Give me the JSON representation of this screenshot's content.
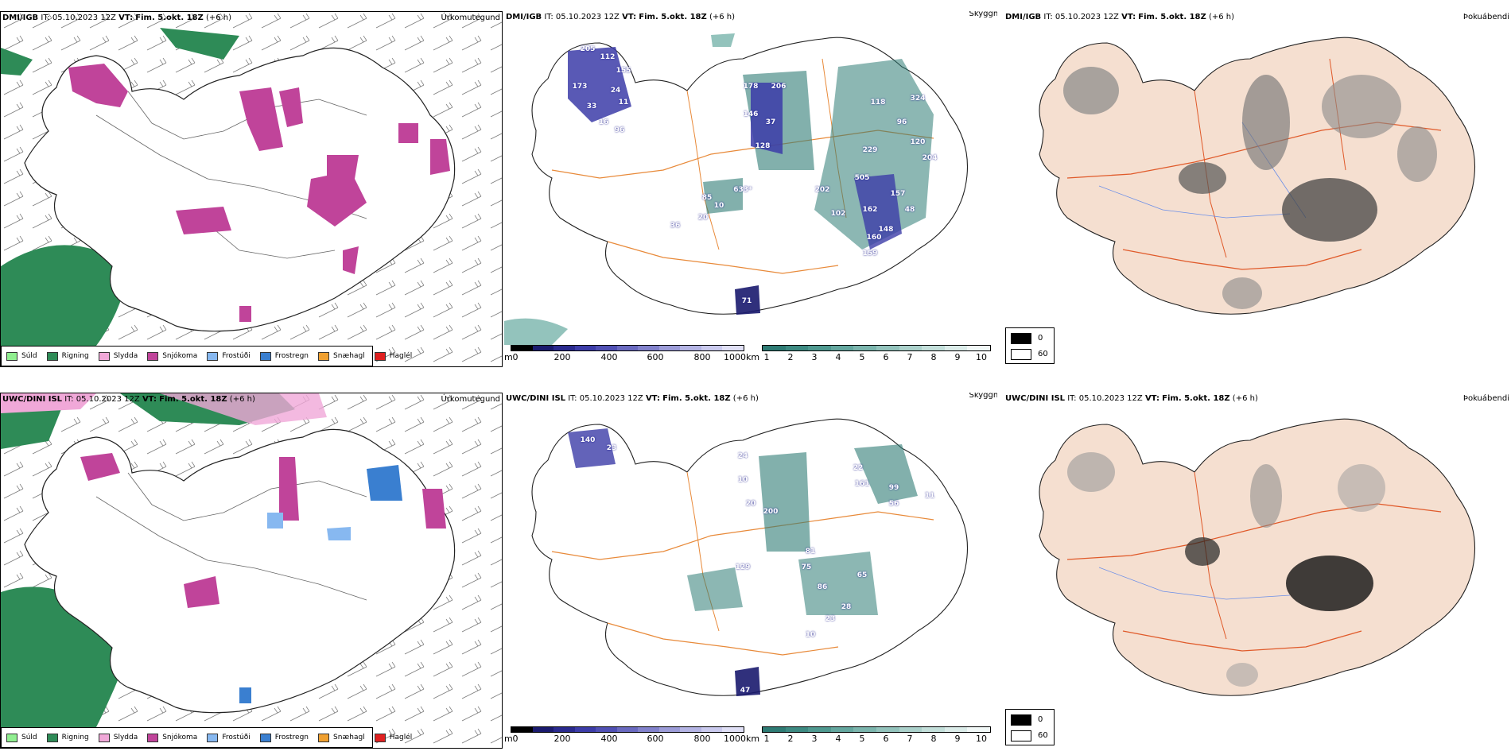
{
  "rows": [
    {
      "model": "DMI/IGB",
      "it_label": "IT:",
      "it": "05.10.2023 12Z",
      "vt_label": "VT:",
      "vt": "Fim. 5.okt. 18Z",
      "lead": "(+6 h)",
      "panel_titles": [
        "Úrkomutegund",
        "Skyggni",
        "Þokuábendi"
      ],
      "cloud_labels": [
        "205",
        "112",
        "155",
        "173",
        "24",
        "33",
        "11",
        "16",
        "96",
        "178",
        "206",
        "146",
        "37",
        "128",
        "118",
        "324",
        "96",
        "120",
        "229",
        "204",
        "505",
        "202",
        "162",
        "102",
        "157",
        "48",
        "160",
        "148",
        "159",
        "85",
        "20",
        "633*",
        "36",
        "10",
        "71"
      ]
    },
    {
      "model": "UWC/DINI ISL",
      "it_label": "IT:",
      "it": "05.10.2023 12Z",
      "vt_label": "VT:",
      "vt": "Fim. 5.okt. 18Z",
      "lead": "(+6 h)",
      "panel_titles": [
        "Úrkomutegund",
        "Skyggni",
        "Þokuábendi"
      ],
      "cloud_labels": [
        "140",
        "23",
        "24",
        "10",
        "20",
        "200",
        "22",
        "161",
        "99",
        "56",
        "11",
        "81",
        "75",
        "86",
        "65",
        "28",
        "23",
        "10",
        "129",
        "47"
      ]
    }
  ],
  "precip_legend": [
    {
      "label": "Súld",
      "color": "#90ee90"
    },
    {
      "label": "Rigning",
      "color": "#2e8b57"
    },
    {
      "label": "Slydda",
      "color": "#f0a8d8"
    },
    {
      "label": "Snjókoma",
      "color": "#c0449a"
    },
    {
      "label": "Frostúði",
      "color": "#87b8f0"
    },
    {
      "label": "Frostregn",
      "color": "#3a7fd0"
    },
    {
      "label": "Snæhagl",
      "color": "#f0a030"
    },
    {
      "label": "Haglél",
      "color": "#e02020"
    }
  ],
  "cloud_colorbar": {
    "unit": "m",
    "ticks": [
      "0",
      "200",
      "400",
      "600",
      "800",
      "1000"
    ],
    "colors": [
      "#000000",
      "#1a1a6e",
      "#2a2a8e",
      "#3c3ca8",
      "#5050b4",
      "#6a6ac0",
      "#8282cc",
      "#9c9cd8",
      "#b4b4e4",
      "#cacaee",
      "#e0e0f6"
    ]
  },
  "vis_colorbar": {
    "unit": "km",
    "ticks": [
      "1",
      "2",
      "3",
      "4",
      "5",
      "6",
      "7",
      "8",
      "9",
      "10"
    ],
    "colors": [
      "#2e7b74",
      "#3d8a82",
      "#4f9990",
      "#64a79f",
      "#7bb5ad",
      "#93c3bc",
      "#abd1cb",
      "#c3dfda",
      "#dbece9",
      "#f1f8f7"
    ]
  },
  "fog_legend": {
    "items": [
      {
        "label": "0",
        "color": "#000000"
      },
      {
        "label": "60",
        "color": "#ffffff"
      }
    ]
  }
}
